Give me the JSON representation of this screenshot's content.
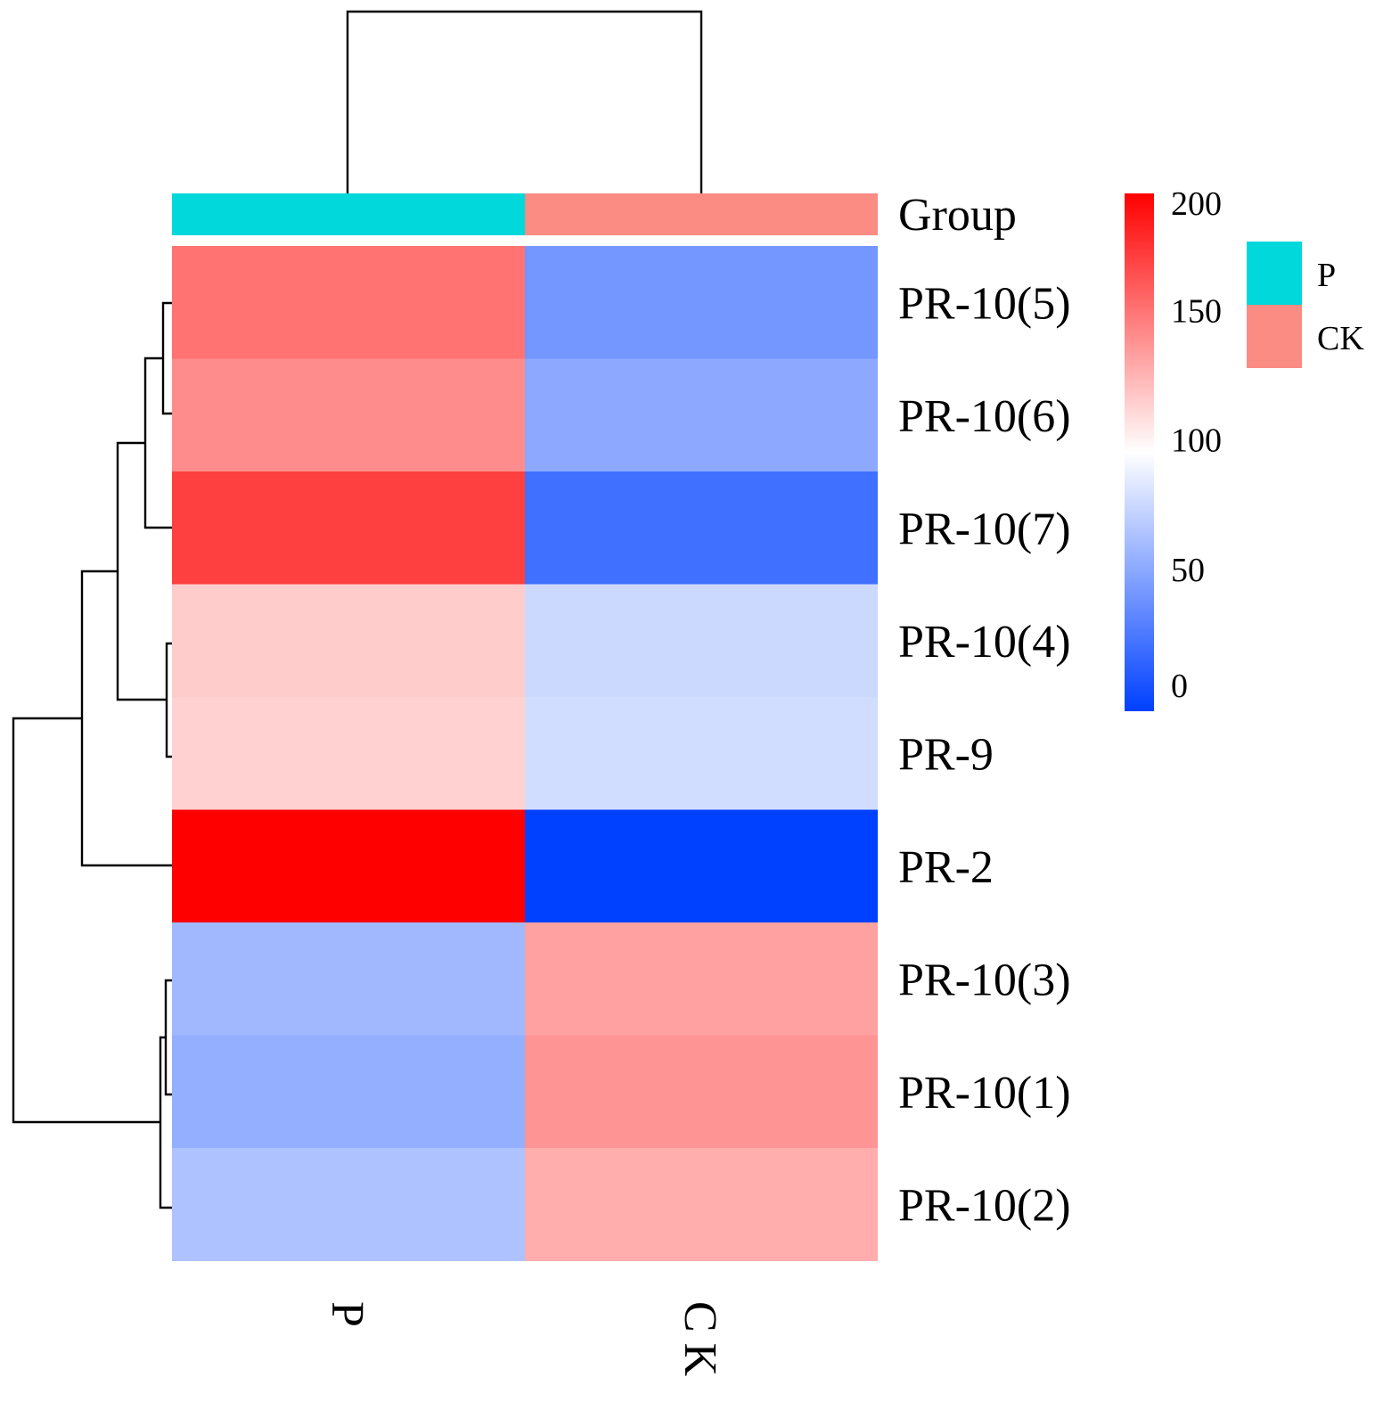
{
  "chart_data": {
    "type": "heatmap",
    "rows": [
      "PR-10(5)",
      "PR-10(6)",
      "PR-10(7)",
      "PR-10(4)",
      "PR-9",
      "PR-2",
      "PR-10(3)",
      "PR-10(1)",
      "PR-10(2)"
    ],
    "columns": [
      "P",
      "CK"
    ],
    "values": [
      [
        155,
        45
      ],
      [
        145,
        55
      ],
      [
        175,
        25
      ],
      [
        120,
        80
      ],
      [
        118,
        82
      ],
      [
        200,
        0
      ],
      [
        63,
        137
      ],
      [
        58,
        142
      ],
      [
        68,
        132
      ]
    ],
    "annotation": {
      "title": "Group",
      "groups": [
        "P",
        "CK"
      ],
      "colors": {
        "P": "#00d8dc",
        "CK": "#fa8c84"
      }
    },
    "colorbar": {
      "min": 0,
      "max": 200,
      "ticks": [
        200,
        150,
        100,
        50,
        0
      ],
      "colors": {
        "low": "#0040ff",
        "mid": "#ffffff",
        "high": "#ff0000"
      }
    },
    "legend": {
      "entries": [
        "P",
        "CK"
      ],
      "placement": "top-right"
    },
    "row_dendrogram": "left",
    "column_dendrogram": "top"
  }
}
